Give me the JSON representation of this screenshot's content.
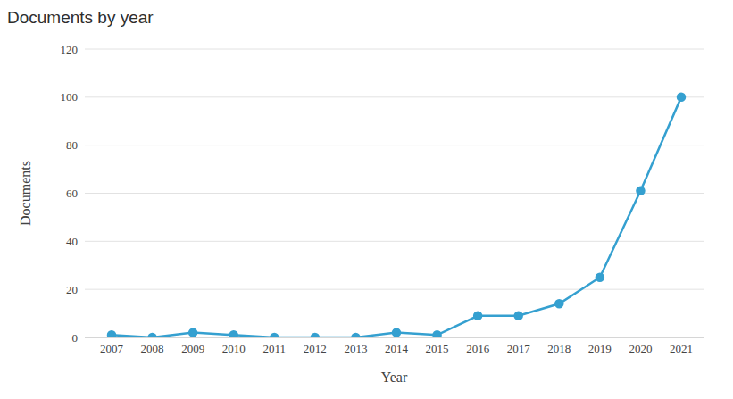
{
  "chart_data": {
    "type": "line",
    "title": "Documents by year",
    "x_label": "Year",
    "y_label": "Documents",
    "categories": [
      "2007",
      "2008",
      "2009",
      "2010",
      "2011",
      "2012",
      "2013",
      "2014",
      "2015",
      "2016",
      "2017",
      "2018",
      "2019",
      "2020",
      "2021"
    ],
    "values": [
      1,
      0,
      2,
      1,
      0,
      0,
      0,
      2,
      1,
      9,
      9,
      14,
      25,
      61,
      100
    ],
    "color": "#35a0d0",
    "ylim": [
      0,
      120
    ],
    "yticks": [
      0,
      20,
      40,
      60,
      80,
      100,
      120
    ],
    "grid": true,
    "marker": "circle"
  }
}
